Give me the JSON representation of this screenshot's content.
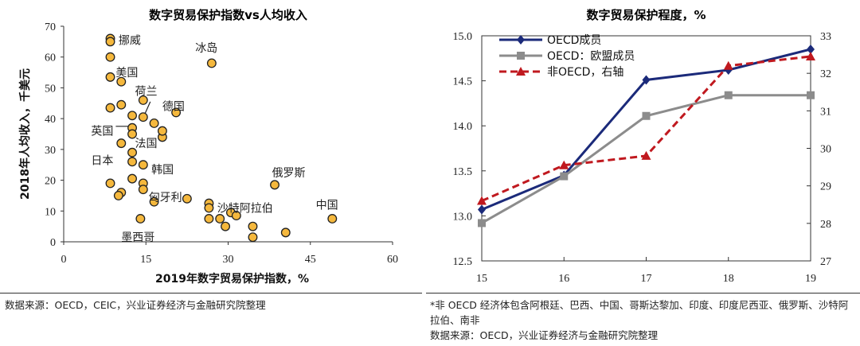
{
  "chart_data": [
    {
      "type": "scatter",
      "title": "数字贸易保护指数vs人均收入",
      "xlabel": "2019年数字贸易保护指数，%",
      "ylabel": "2018年人均收入，千美元",
      "xlim": [
        0,
        60
      ],
      "ylim": [
        0,
        70
      ],
      "xticks": [
        "0",
        "15",
        "30",
        "45",
        "60"
      ],
      "yticks": [
        "0",
        "10",
        "20",
        "30",
        "40",
        "50",
        "60",
        "70"
      ],
      "grid": false,
      "marker_color": "#F5B83D",
      "points": [
        {
          "x": 8.5,
          "y": 66.0
        },
        {
          "x": 8.5,
          "y": 65.0
        },
        {
          "x": 8.5,
          "y": 60.0
        },
        {
          "x": 8.5,
          "y": 53.5
        },
        {
          "x": 10.5,
          "y": 52.0
        },
        {
          "x": 8.5,
          "y": 43.5
        },
        {
          "x": 10.5,
          "y": 44.5
        },
        {
          "x": 14.5,
          "y": 46.0
        },
        {
          "x": 12.5,
          "y": 41.0
        },
        {
          "x": 14.5,
          "y": 40.5
        },
        {
          "x": 16.5,
          "y": 38.5
        },
        {
          "x": 20.5,
          "y": 42.0
        },
        {
          "x": 12.5,
          "y": 37.0
        },
        {
          "x": 12.5,
          "y": 35.0
        },
        {
          "x": 18.0,
          "y": 34.0
        },
        {
          "x": 18.0,
          "y": 36.0
        },
        {
          "x": 10.5,
          "y": 32.0
        },
        {
          "x": 12.5,
          "y": 29.0
        },
        {
          "x": 12.5,
          "y": 26.0
        },
        {
          "x": 14.5,
          "y": 25.0
        },
        {
          "x": 12.5,
          "y": 20.5
        },
        {
          "x": 14.5,
          "y": 19.0
        },
        {
          "x": 8.5,
          "y": 19.0
        },
        {
          "x": 10.5,
          "y": 16.0
        },
        {
          "x": 10.0,
          "y": 15.0
        },
        {
          "x": 14.5,
          "y": 17.0
        },
        {
          "x": 16.5,
          "y": 13.0
        },
        {
          "x": 22.5,
          "y": 14.0
        },
        {
          "x": 26.5,
          "y": 12.5
        },
        {
          "x": 26.5,
          "y": 11.0
        },
        {
          "x": 26.5,
          "y": 7.5
        },
        {
          "x": 28.5,
          "y": 7.5
        },
        {
          "x": 30.5,
          "y": 9.5
        },
        {
          "x": 31.5,
          "y": 8.5
        },
        {
          "x": 29.5,
          "y": 5.0
        },
        {
          "x": 34.5,
          "y": 5.0
        },
        {
          "x": 34.5,
          "y": 1.5
        },
        {
          "x": 40.5,
          "y": 3.0
        },
        {
          "x": 14.0,
          "y": 7.5
        },
        {
          "x": 27.0,
          "y": 58.0
        },
        {
          "x": 38.5,
          "y": 18.5
        },
        {
          "x": 49.0,
          "y": 7.5
        }
      ],
      "annotations": [
        {
          "text": "挪威",
          "x": 10.0,
          "y": 65.5
        },
        {
          "text": "美国",
          "x": 9.5,
          "y": 55.0
        },
        {
          "text": "荷兰",
          "x": 13.0,
          "y": 49.0
        },
        {
          "text": "德国",
          "x": 18.0,
          "y": 44.0
        },
        {
          "text": "英国",
          "x": 5.0,
          "y": 36.0
        },
        {
          "text": "法国",
          "x": 13.0,
          "y": 32.0
        },
        {
          "text": "日本",
          "x": 5.0,
          "y": 26.5
        },
        {
          "text": "韩国",
          "x": 16.0,
          "y": 23.5
        },
        {
          "text": "匈牙利",
          "x": 15.5,
          "y": 14.5
        },
        {
          "text": "沙特阿拉伯",
          "x": 28.0,
          "y": 11.0
        },
        {
          "text": "墨西哥",
          "x": 10.5,
          "y": 1.5
        },
        {
          "text": "冰岛",
          "x": 24.0,
          "y": 63.0
        },
        {
          "text": "俄罗斯",
          "x": 38.0,
          "y": 22.5
        },
        {
          "text": "中国",
          "x": 46.0,
          "y": 12.0
        }
      ]
    },
    {
      "type": "line",
      "title": "数字贸易保护程度，%",
      "x": [
        "15",
        "16",
        "17",
        "18",
        "19"
      ],
      "ylim": [
        12.5,
        15.0
      ],
      "yticks": [
        "12.5",
        "13.0",
        "13.5",
        "14.0",
        "14.5",
        "15.0"
      ],
      "y2lim": [
        27,
        33
      ],
      "y2ticks": [
        "27",
        "28",
        "29",
        "30",
        "31",
        "32",
        "33"
      ],
      "legend_position": "top-left",
      "grid": false,
      "series": [
        {
          "name": "OECD成员",
          "axis": "left",
          "color": "#1B2A7A",
          "marker": "diamond",
          "style": "solid",
          "values": [
            13.07,
            13.45,
            14.51,
            14.62,
            14.85
          ]
        },
        {
          "name": "OECD：欧盟成员",
          "axis": "left",
          "color": "#8C8C8C",
          "marker": "square",
          "style": "solid",
          "values": [
            12.92,
            13.44,
            14.11,
            14.34,
            14.34
          ]
        },
        {
          "name": "非OECD，右轴",
          "axis": "right",
          "color": "#C0191F",
          "marker": "triangle",
          "style": "dashed",
          "values": [
            28.6,
            29.55,
            29.8,
            32.2,
            32.45
          ]
        }
      ]
    }
  ],
  "footer": {
    "left": "数据来源：OECD，CEIC，兴业证券经济与金融研究院整理",
    "right": "*非 OECD 经济体包含阿根廷、巴西、中国、哥斯达黎加、印度、印度尼西亚、俄罗斯、沙特阿拉伯、南非\n数据来源：OECD，兴业证券经济与金融研究院整理"
  }
}
